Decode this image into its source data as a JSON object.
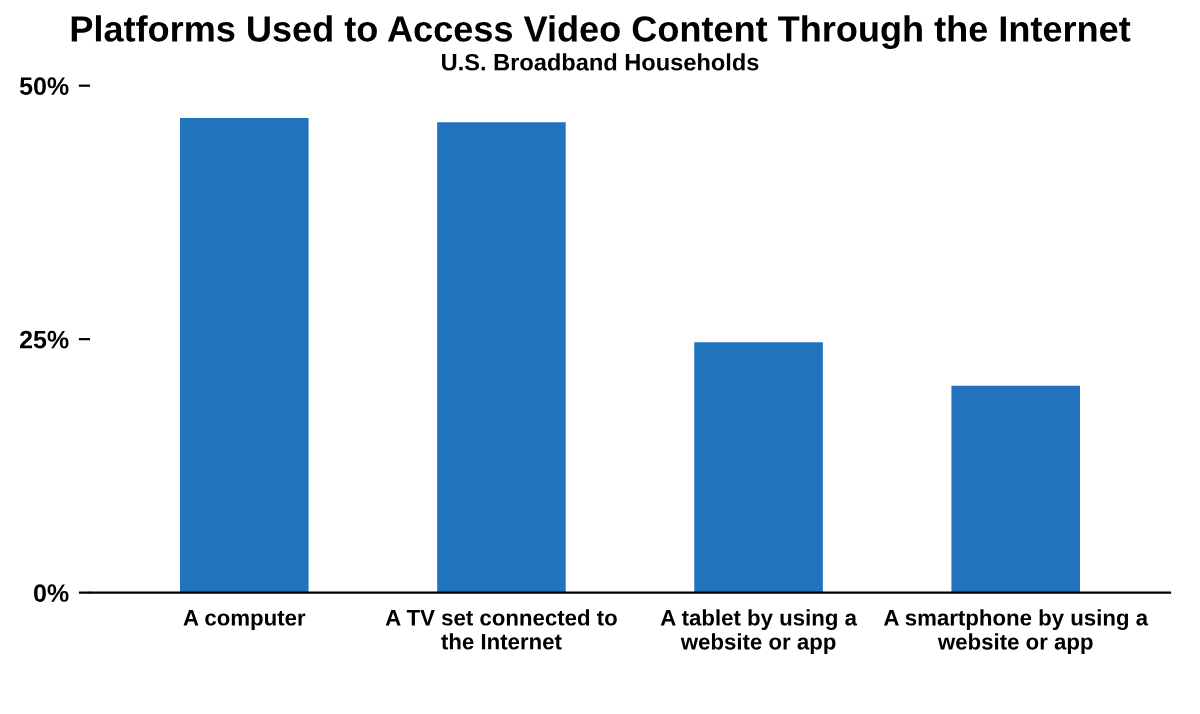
{
  "chart_data": {
    "type": "bar",
    "title": "Platforms Used to Access Video Content Through the Internet",
    "subtitle": "U.S. Broadband Households",
    "categories": [
      "A computer",
      "A TV set connected to\nthe Internet",
      "A tablet by using a\nwebsite or app",
      "A smartphone by using a\nwebsite or app"
    ],
    "values": [
      46.8,
      46.4,
      24.7,
      20.4
    ],
    "color": "#2173bc",
    "ylim": [
      0,
      50
    ],
    "yticks": [
      {
        "value": 0,
        "label": "0%"
      },
      {
        "value": 25,
        "label": "25%"
      },
      {
        "value": 50,
        "label": "50%"
      }
    ],
    "grid": false
  }
}
